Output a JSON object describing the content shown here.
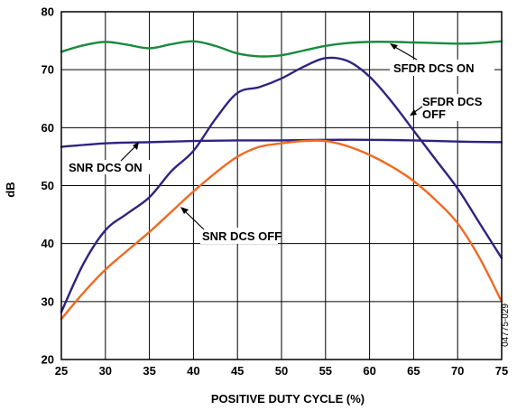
{
  "chart_data": {
    "type": "line",
    "xlabel": "POSITIVE DUTY CYCLE (%)",
    "ylabel": "dB",
    "xlim": [
      25,
      75
    ],
    "ylim": [
      20,
      80
    ],
    "xticks": [
      25,
      30,
      35,
      40,
      45,
      50,
      55,
      60,
      65,
      70,
      75
    ],
    "yticks": [
      20,
      30,
      40,
      50,
      60,
      70,
      80
    ],
    "grid": true,
    "figure_id": "04775-029",
    "series": [
      {
        "name": "SFDR DCS ON",
        "color": "#1a8a3e",
        "x": [
          25,
          27.5,
          30,
          32.5,
          35,
          37.5,
          40,
          42.5,
          45,
          47.5,
          50,
          52.5,
          55,
          57.5,
          60,
          62.5,
          65,
          67.5,
          70,
          72.5,
          75
        ],
        "y": [
          73.1,
          74.2,
          74.8,
          74.3,
          73.7,
          74.4,
          74.9,
          74.1,
          72.8,
          72.3,
          72.5,
          73.3,
          74.1,
          74.6,
          74.8,
          74.8,
          74.7,
          74.6,
          74.5,
          74.6,
          74.9
        ]
      },
      {
        "name": "SFDR DCS OFF",
        "color": "#2e2380",
        "x": [
          25,
          27.5,
          30,
          32.5,
          35,
          37.5,
          40,
          42.5,
          45,
          47.5,
          50,
          52.5,
          55,
          57.5,
          60,
          62.5,
          65,
          67.5,
          70,
          72.5,
          75
        ],
        "y": [
          28.2,
          36.5,
          42.3,
          45.2,
          48.0,
          52.5,
          56.0,
          61.5,
          66.0,
          67.0,
          68.5,
          70.5,
          72.0,
          71.5,
          68.8,
          64.5,
          59.5,
          54.5,
          49.5,
          43.5,
          37.5
        ]
      },
      {
        "name": "SNR DCS ON",
        "color": "#2e2380",
        "x": [
          25,
          30,
          35,
          40,
          45,
          50,
          55,
          60,
          65,
          70,
          75
        ],
        "y": [
          56.7,
          57.3,
          57.5,
          57.7,
          57.8,
          57.8,
          57.9,
          57.9,
          57.8,
          57.6,
          57.5
        ]
      },
      {
        "name": "SNR DCS OFF",
        "color": "#ef6a22",
        "x": [
          25,
          27.5,
          30,
          32.5,
          35,
          37.5,
          40,
          42.5,
          45,
          47.5,
          50,
          52.5,
          55,
          57.5,
          60,
          62.5,
          65,
          67.5,
          70,
          72.5,
          75
        ],
        "y": [
          27.0,
          31.5,
          35.5,
          38.8,
          42.0,
          45.5,
          49.0,
          52.2,
          55.0,
          56.7,
          57.3,
          57.7,
          57.7,
          56.8,
          55.3,
          53.3,
          50.8,
          47.5,
          43.5,
          37.5,
          30.0
        ]
      }
    ],
    "annotations": [
      {
        "text": "SFDR DCS ON"
      },
      {
        "text": "SFDR DCS",
        "text2": "OFF"
      },
      {
        "text": "SNR DCS ON"
      },
      {
        "text": "SNR DCS OFF"
      }
    ]
  }
}
